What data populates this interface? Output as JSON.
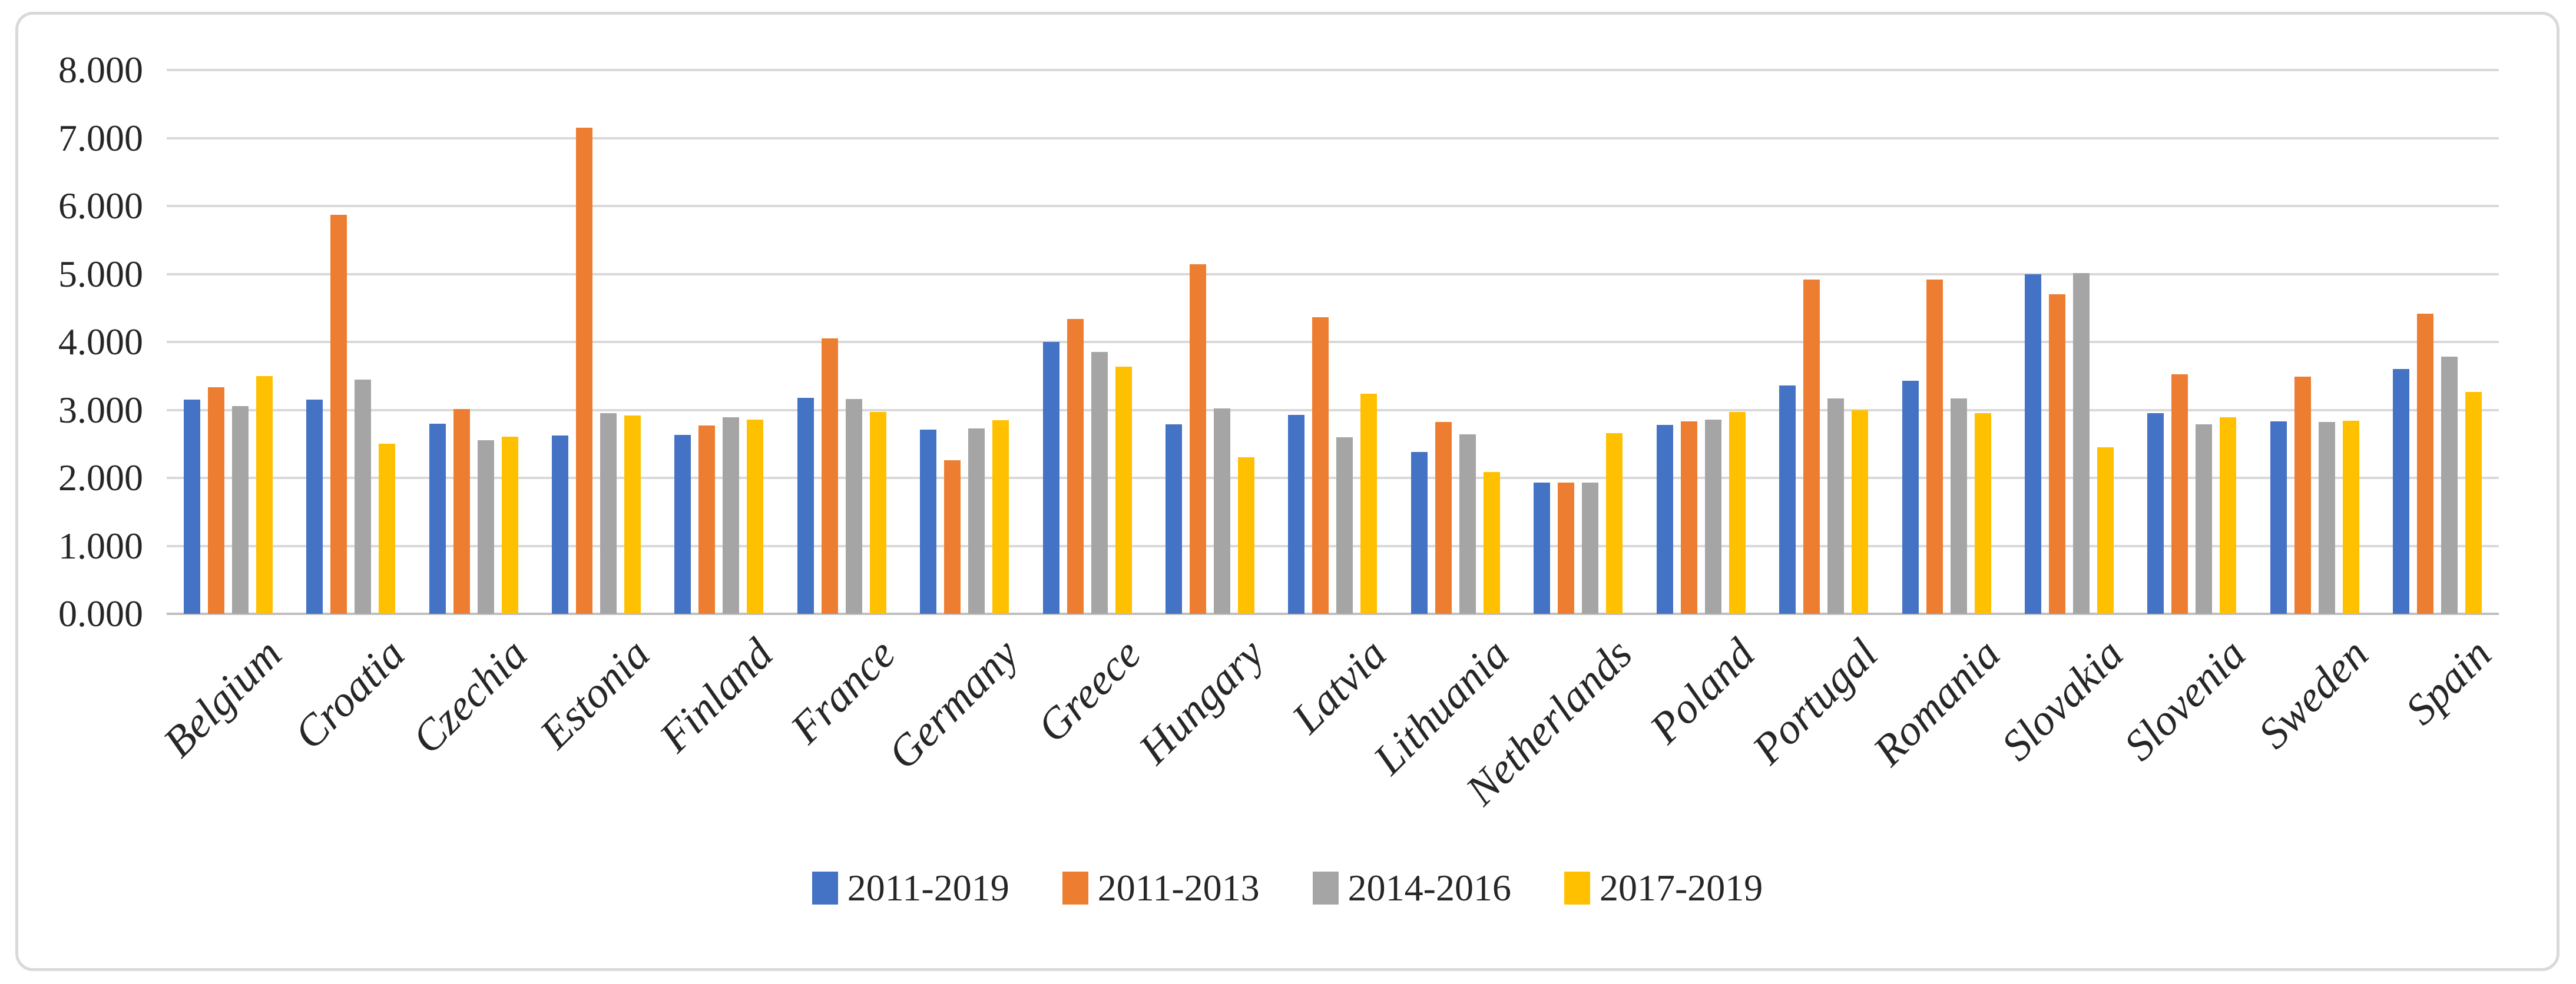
{
  "figure": {
    "background": "#ffffff",
    "border_color": "#D9D9D9"
  },
  "chart_data": {
    "type": "bar",
    "title": "",
    "xlabel": "",
    "ylabel": "",
    "ylim": [
      0,
      8
    ],
    "grid": true,
    "legend_position": "bottom",
    "gridline_color": "#D9D9D9",
    "axis_line_color": "#BFBFBF",
    "tick_label_color": "#262626",
    "y_ticks": [
      "0.000",
      "1.000",
      "2.000",
      "3.000",
      "4.000",
      "5.000",
      "6.000",
      "7.000",
      "8.000"
    ],
    "categories": [
      "Belgium",
      "Croatia",
      "Czechia",
      "Estonia",
      "Finland",
      "France",
      "Germany",
      "Greece",
      "Hungary",
      "Latvia",
      "Lithuania",
      "Netherlands",
      "Poland",
      "Portugal",
      "Romania",
      "Slovakia",
      "Slovenia",
      "Sweden",
      "Spain"
    ],
    "series": [
      {
        "name": "2011-2019",
        "color": "#4472C4",
        "values": [
          3.15,
          3.15,
          2.8,
          2.62,
          2.63,
          3.18,
          2.71,
          4.0,
          2.79,
          2.93,
          2.38,
          1.93,
          2.78,
          3.36,
          3.43,
          5.0,
          2.95,
          2.83,
          3.6
        ]
      },
      {
        "name": "2011-2013",
        "color": "#ED7D31",
        "values": [
          3.33,
          5.87,
          3.01,
          7.15,
          2.77,
          4.05,
          2.26,
          4.34,
          5.14,
          4.36,
          2.82,
          1.93,
          2.83,
          4.92,
          4.92,
          4.7,
          3.52,
          3.49,
          4.42
        ]
      },
      {
        "name": "2014-2016",
        "color": "#A5A5A5",
        "values": [
          3.06,
          3.45,
          2.55,
          2.95,
          2.89,
          3.16,
          2.73,
          3.85,
          3.02,
          2.6,
          2.64,
          1.93,
          2.86,
          3.17,
          3.17,
          5.01,
          2.79,
          2.82,
          3.78
        ]
      },
      {
        "name": "2017-2019",
        "color": "#FFC000",
        "values": [
          3.5,
          2.5,
          2.61,
          2.92,
          2.86,
          2.97,
          2.85,
          3.64,
          2.3,
          3.24,
          2.09,
          2.66,
          2.97,
          3.0,
          2.95,
          2.45,
          2.89,
          2.84,
          3.26
        ]
      }
    ]
  }
}
